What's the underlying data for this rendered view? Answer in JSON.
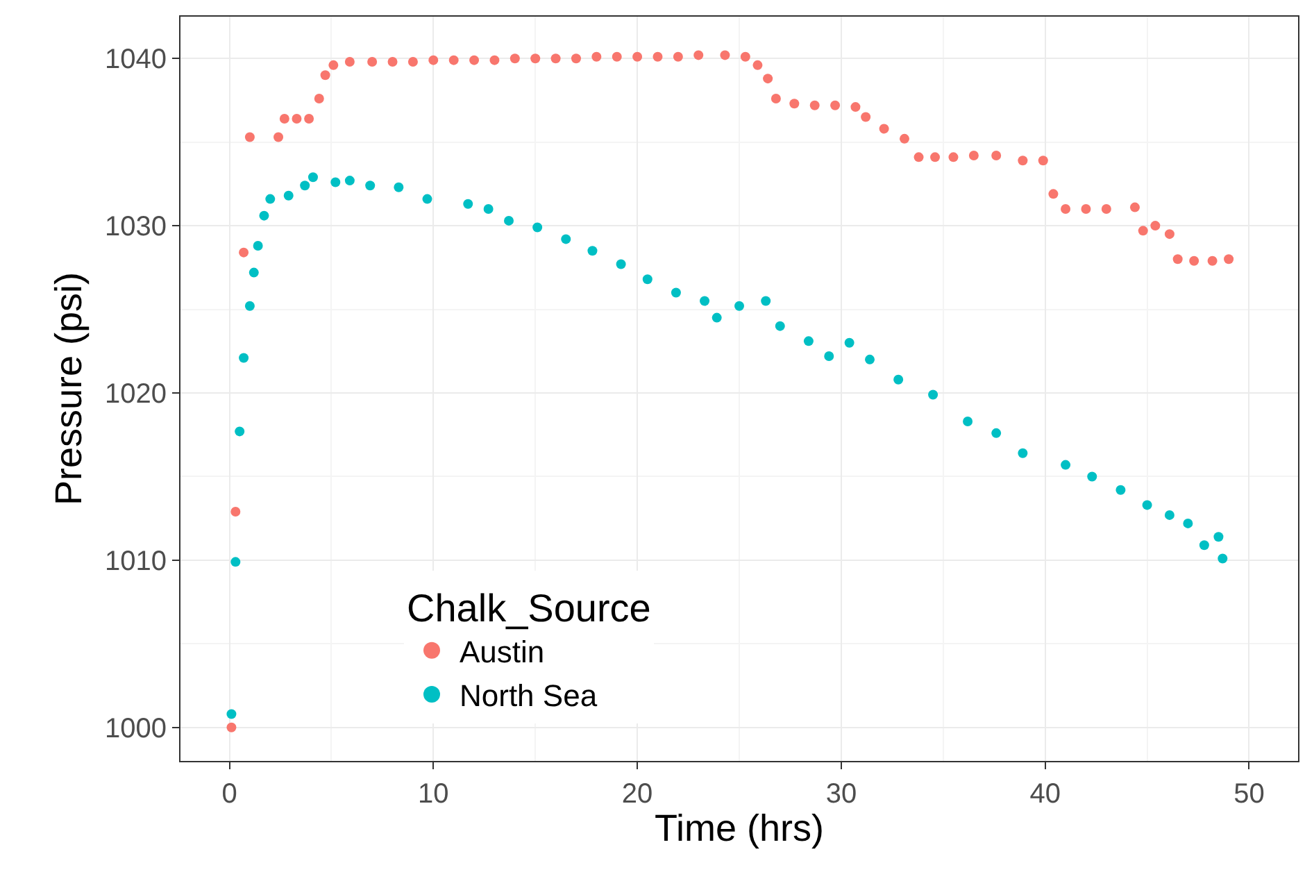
{
  "chart_data": {
    "type": "scatter",
    "xlabel": "Time (hrs)",
    "ylabel": "Pressure (psi)",
    "legend_title": "Chalk_Source",
    "legend": "bottom left",
    "grid": true,
    "marker": "circle",
    "xlim": [
      -2.4,
      52.4
    ],
    "xticks": [
      0,
      10,
      20,
      30,
      40,
      50
    ],
    "ylim": [
      998,
      1042.5
    ],
    "yticks": [
      1000,
      1010,
      1020,
      1030,
      1040
    ],
    "series": [
      {
        "name": "Austin",
        "color": "#f8766d",
        "x": [
          0.1,
          0.3,
          0.7,
          1.0,
          2.4,
          2.7,
          3.3,
          3.9,
          4.4,
          4.7,
          5.1,
          5.9,
          7,
          8,
          9,
          10,
          11,
          12,
          13,
          14,
          15,
          16,
          17,
          18,
          19,
          20,
          21,
          22,
          23,
          24.3,
          25.3,
          25.9,
          26.4,
          26.8,
          27.7,
          28.7,
          29.7,
          30.7,
          31.2,
          32.1,
          33.1,
          33.8,
          34.6,
          35.5,
          36.5,
          37.6,
          38.9,
          39.9,
          40.4,
          41.0,
          42.0,
          43.0,
          44.4,
          44.8,
          45.4,
          46.1,
          46.5,
          47.3,
          48.2,
          49.0
        ],
        "values": [
          1000,
          1012.9,
          1028.4,
          1035.3,
          1035.3,
          1036.4,
          1036.4,
          1036.4,
          1037.6,
          1039.0,
          1039.6,
          1039.8,
          1039.8,
          1039.8,
          1039.8,
          1039.9,
          1039.9,
          1039.9,
          1039.9,
          1040.0,
          1040.0,
          1040.0,
          1040.0,
          1040.1,
          1040.1,
          1040.1,
          1040.1,
          1040.1,
          1040.2,
          1040.2,
          1040.1,
          1039.6,
          1038.8,
          1037.6,
          1037.3,
          1037.2,
          1037.2,
          1037.1,
          1036.5,
          1035.8,
          1035.2,
          1034.1,
          1034.1,
          1034.1,
          1034.2,
          1034.2,
          1033.9,
          1033.9,
          1031.9,
          1031.0,
          1031.0,
          1031.0,
          1031.1,
          1029.7,
          1030.0,
          1029.5,
          1028.0,
          1027.9,
          1027.9,
          1028.0
        ]
      },
      {
        "name": "North Sea",
        "color": "#00bfc4",
        "x": [
          0.1,
          0.3,
          0.5,
          0.7,
          1.0,
          1.2,
          1.4,
          1.7,
          2.0,
          2.9,
          3.7,
          4.1,
          5.2,
          5.9,
          6.9,
          8.3,
          9.7,
          11.7,
          12.7,
          13.7,
          15.1,
          16.5,
          17.8,
          19.2,
          20.5,
          21.9,
          23.3,
          23.9,
          25.0,
          26.3,
          27.0,
          28.4,
          29.4,
          30.4,
          31.4,
          32.8,
          34.5,
          36.2,
          37.6,
          38.9,
          41.0,
          42.3,
          43.7,
          45.0,
          46.1,
          47.0,
          47.8,
          48.5,
          48.7
        ],
        "values": [
          1000.8,
          1009.9,
          1017.7,
          1022.1,
          1025.2,
          1027.2,
          1028.8,
          1030.6,
          1031.6,
          1031.8,
          1032.4,
          1032.9,
          1032.6,
          1032.7,
          1032.4,
          1032.3,
          1031.6,
          1031.3,
          1031.0,
          1030.3,
          1029.9,
          1029.2,
          1028.5,
          1027.7,
          1026.8,
          1026.0,
          1025.5,
          1024.5,
          1025.2,
          1025.5,
          1024.0,
          1023.1,
          1022.2,
          1023.0,
          1022.0,
          1020.8,
          1019.9,
          1018.3,
          1017.6,
          1016.4,
          1015.7,
          1015.0,
          1014.2,
          1013.3,
          1012.7,
          1012.2,
          1010.9,
          1011.4,
          1010.1
        ]
      }
    ]
  }
}
